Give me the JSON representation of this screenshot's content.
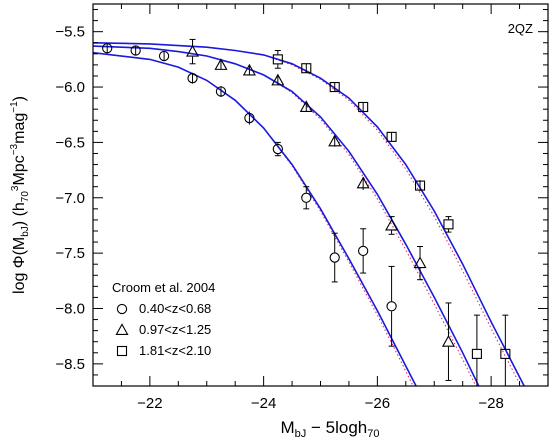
{
  "chart_data": {
    "type": "scatter",
    "title": "",
    "corner_label": "2QZ",
    "xlabel": {
      "main": "M",
      "sub1": "bJ",
      "rest": " − 5logh",
      "sub2": "70"
    },
    "ylabel": {
      "a": "log Φ(M",
      "a_sub": "bJ",
      "b": ") (h",
      "b_sub": "70",
      "b_sup": "3",
      "c": "Mpc",
      "c_sup": "−3",
      "d": "mag",
      "d_sup": "−1",
      "e": ")"
    },
    "xlim": [
      -21.0,
      -29.0
    ],
    "ylim": [
      -8.7,
      -5.25
    ],
    "x_ticks": [
      -22,
      -24,
      -26,
      -28
    ],
    "x_tick_labels": [
      "−22",
      "−24",
      "−26",
      "−28"
    ],
    "y_ticks": [
      -5.5,
      -6.0,
      -6.5,
      -7.0,
      -7.5,
      -8.0,
      -8.5
    ],
    "y_tick_labels": [
      "−5.5",
      "−6.0",
      "−6.5",
      "−7.0",
      "−7.5",
      "−8.0",
      "−8.5"
    ],
    "grid": false,
    "legend": {
      "title": "Croom et al. 2004",
      "position": "bottom-left",
      "entries": [
        {
          "marker": "circle",
          "label": "0.40<z<0.68"
        },
        {
          "marker": "triangle",
          "label": "0.97<z<1.25"
        },
        {
          "marker": "square",
          "label": "1.81<z<2.10"
        }
      ]
    },
    "series": [
      {
        "marker": "circle",
        "points": [
          {
            "x": -21.25,
            "y": -5.65,
            "err": 0.03
          },
          {
            "x": -21.75,
            "y": -5.67,
            "err": 0.03
          },
          {
            "x": -22.25,
            "y": -5.72,
            "err": 0.03
          },
          {
            "x": -22.75,
            "y": -5.92,
            "err": 0.04
          },
          {
            "x": -23.25,
            "y": -6.04,
            "err": 0.04
          },
          {
            "x": -23.75,
            "y": -6.28,
            "err": 0.05
          },
          {
            "x": -24.25,
            "y": -6.56,
            "err": 0.06
          },
          {
            "x": -24.75,
            "y": -7.0,
            "err": 0.1
          },
          {
            "x": -25.25,
            "y": -7.54,
            "err": 0.22
          },
          {
            "x": -25.75,
            "y": -7.48,
            "err": 0.2
          },
          {
            "x": -26.25,
            "y": -7.98,
            "err": 0.36
          }
        ]
      },
      {
        "marker": "triangle",
        "points": [
          {
            "x": -22.75,
            "y": -5.68,
            "err": 0.11
          },
          {
            "x": -23.25,
            "y": -5.8,
            "err": 0.03
          },
          {
            "x": -23.75,
            "y": -5.85,
            "err": 0.03
          },
          {
            "x": -24.25,
            "y": -5.94,
            "err": 0.03
          },
          {
            "x": -24.75,
            "y": -6.18,
            "err": 0.03
          },
          {
            "x": -25.25,
            "y": -6.49,
            "err": 0.04
          },
          {
            "x": -25.75,
            "y": -6.87,
            "err": 0.05
          },
          {
            "x": -26.25,
            "y": -7.25,
            "err": 0.08
          },
          {
            "x": -26.75,
            "y": -7.59,
            "err": 0.15
          },
          {
            "x": -27.25,
            "y": -8.3,
            "err": 0.35
          }
        ]
      },
      {
        "marker": "square",
        "points": [
          {
            "x": -24.25,
            "y": -5.75,
            "err": 0.08
          },
          {
            "x": -24.75,
            "y": -5.83,
            "err": 0.03
          },
          {
            "x": -25.25,
            "y": -6.0,
            "err": 0.03
          },
          {
            "x": -25.75,
            "y": -6.18,
            "err": 0.03
          },
          {
            "x": -26.25,
            "y": -6.45,
            "err": 0.03
          },
          {
            "x": -26.75,
            "y": -6.89,
            "err": 0.04
          },
          {
            "x": -27.25,
            "y": -7.24,
            "err": 0.07
          },
          {
            "x": -27.75,
            "y": -8.41,
            "err": 0.35
          },
          {
            "x": -28.25,
            "y": -8.41,
            "err": 0.35
          }
        ]
      }
    ],
    "model_curves": [
      {
        "color": "#1a1adf",
        "points": [
          [
            -21.0,
            -5.69
          ],
          [
            -22.0,
            -5.75
          ],
          [
            -22.5,
            -5.82
          ],
          [
            -23.0,
            -5.94
          ],
          [
            -23.5,
            -6.12
          ],
          [
            -24.0,
            -6.37
          ],
          [
            -24.5,
            -6.7
          ],
          [
            -25.0,
            -7.1
          ],
          [
            -25.5,
            -7.55
          ],
          [
            -26.0,
            -8.02
          ],
          [
            -26.3,
            -8.32
          ],
          [
            -26.6,
            -8.62
          ],
          [
            -26.7,
            -8.72
          ]
        ]
      },
      {
        "color": "#1a1adf",
        "points": [
          [
            -21.0,
            -5.63
          ],
          [
            -22.0,
            -5.65
          ],
          [
            -22.5,
            -5.68
          ],
          [
            -23.0,
            -5.72
          ],
          [
            -23.5,
            -5.79
          ],
          [
            -24.0,
            -5.89
          ],
          [
            -24.5,
            -6.04
          ],
          [
            -25.0,
            -6.27
          ],
          [
            -25.5,
            -6.58
          ],
          [
            -26.0,
            -6.97
          ],
          [
            -26.5,
            -7.42
          ],
          [
            -27.0,
            -7.9
          ],
          [
            -27.5,
            -8.4
          ],
          [
            -27.8,
            -8.72
          ]
        ]
      },
      {
        "color": "#1a1adf",
        "points": [
          [
            -21.0,
            -5.6
          ],
          [
            -22.0,
            -5.61
          ],
          [
            -23.0,
            -5.64
          ],
          [
            -23.5,
            -5.67
          ],
          [
            -24.0,
            -5.71
          ],
          [
            -24.5,
            -5.79
          ],
          [
            -25.0,
            -5.92
          ],
          [
            -25.5,
            -6.1
          ],
          [
            -26.0,
            -6.36
          ],
          [
            -26.5,
            -6.7
          ],
          [
            -27.0,
            -7.12
          ],
          [
            -27.5,
            -7.6
          ],
          [
            -28.0,
            -8.12
          ],
          [
            -28.5,
            -8.62
          ],
          [
            -28.6,
            -8.72
          ]
        ]
      }
    ],
    "reference_curves": [
      {
        "color": "#e0306a",
        "style": "dotted",
        "points": [
          [
            -21.0,
            -5.69
          ],
          [
            -22.0,
            -5.75
          ],
          [
            -22.5,
            -5.82
          ],
          [
            -23.0,
            -5.94
          ],
          [
            -23.5,
            -6.12
          ],
          [
            -24.0,
            -6.37
          ],
          [
            -24.5,
            -6.71
          ],
          [
            -25.0,
            -7.12
          ],
          [
            -25.5,
            -7.58
          ],
          [
            -26.0,
            -8.06
          ],
          [
            -26.3,
            -8.36
          ],
          [
            -26.6,
            -8.67
          ],
          [
            -26.65,
            -8.72
          ]
        ]
      },
      {
        "color": "#e0306a",
        "style": "dotted",
        "points": [
          [
            -21.0,
            -5.63
          ],
          [
            -22.0,
            -5.65
          ],
          [
            -22.5,
            -5.68
          ],
          [
            -23.0,
            -5.72
          ],
          [
            -23.5,
            -5.79
          ],
          [
            -24.0,
            -5.89
          ],
          [
            -24.5,
            -6.05
          ],
          [
            -25.0,
            -6.29
          ],
          [
            -25.5,
            -6.61
          ],
          [
            -26.0,
            -7.01
          ],
          [
            -26.5,
            -7.47
          ],
          [
            -27.0,
            -7.96
          ],
          [
            -27.5,
            -8.46
          ],
          [
            -27.75,
            -8.72
          ]
        ]
      },
      {
        "color": "#e0306a",
        "style": "dotted",
        "points": [
          [
            -21.0,
            -5.6
          ],
          [
            -22.0,
            -5.61
          ],
          [
            -23.0,
            -5.64
          ],
          [
            -23.5,
            -5.67
          ],
          [
            -24.0,
            -5.71
          ],
          [
            -24.5,
            -5.8
          ],
          [
            -25.0,
            -5.93
          ],
          [
            -25.5,
            -6.12
          ],
          [
            -26.0,
            -6.39
          ],
          [
            -26.5,
            -6.74
          ],
          [
            -27.0,
            -7.17
          ],
          [
            -27.5,
            -7.66
          ],
          [
            -28.0,
            -8.18
          ],
          [
            -28.5,
            -8.68
          ],
          [
            -28.55,
            -8.72
          ]
        ]
      }
    ]
  }
}
